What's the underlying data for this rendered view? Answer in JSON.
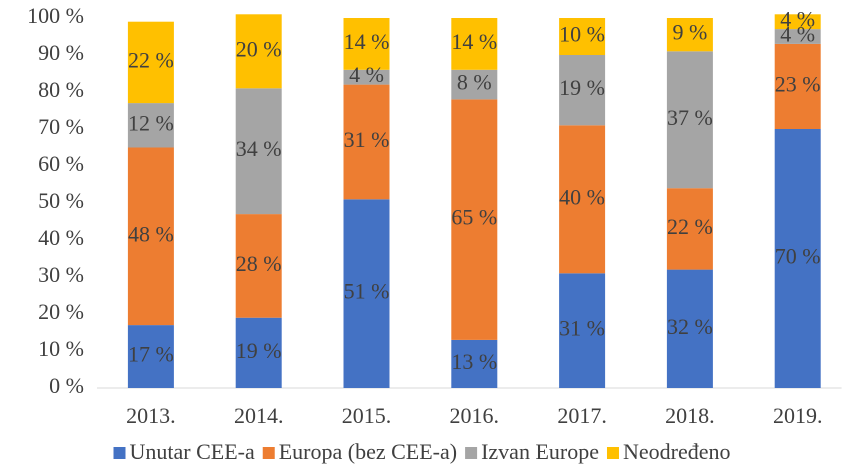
{
  "chart_data": {
    "type": "stacked_bar",
    "categories": [
      "2013.",
      "2014.",
      "2015.",
      "2016.",
      "2017.",
      "2018.",
      "2019."
    ],
    "series": [
      {
        "name": "Unutar CEE-a",
        "color": "#4472c4",
        "values": [
          17,
          19,
          51,
          13,
          31,
          32,
          70
        ],
        "value_labels": [
          "17 %",
          "19 %",
          "51 %",
          "13 %",
          "31 %",
          "32 %",
          "70 %"
        ]
      },
      {
        "name": "Europa (bez CEE-a)",
        "color": "#ed7d31",
        "values": [
          48,
          28,
          31,
          65,
          40,
          22,
          23
        ],
        "value_labels": [
          "48 %",
          "28 %",
          "31 %",
          "65 %",
          "40 %",
          "22 %",
          "23 %"
        ]
      },
      {
        "name": "Izvan Europe",
        "color": "#a5a5a5",
        "values": [
          12,
          34,
          4,
          8,
          19,
          37,
          4
        ],
        "value_labels": [
          "12 %",
          "34 %",
          "4 %",
          "8 %",
          "19 %",
          "37 %",
          "4 %"
        ]
      },
      {
        "name": "Neodređeno",
        "color": "#ffc000",
        "values": [
          22,
          20,
          14,
          14,
          10,
          9,
          4
        ],
        "value_labels": [
          "22 %",
          "20 %",
          "14 %",
          "14 %",
          "10 %",
          "9 %",
          "4 %"
        ]
      }
    ],
    "ylim": [
      0,
      100
    ],
    "yticks": [
      {
        "value": 0,
        "label": "0 %"
      },
      {
        "value": 10,
        "label": "10 %"
      },
      {
        "value": 20,
        "label": "20 %"
      },
      {
        "value": 30,
        "label": "30 %"
      },
      {
        "value": 40,
        "label": "40 %"
      },
      {
        "value": 50,
        "label": "50 %"
      },
      {
        "value": 60,
        "label": "60 %"
      },
      {
        "value": 70,
        "label": "70 %"
      },
      {
        "value": 80,
        "label": "80 %"
      },
      {
        "value": 90,
        "label": "90 %"
      },
      {
        "value": 100,
        "label": "100 %"
      }
    ],
    "legend": "bottom"
  }
}
